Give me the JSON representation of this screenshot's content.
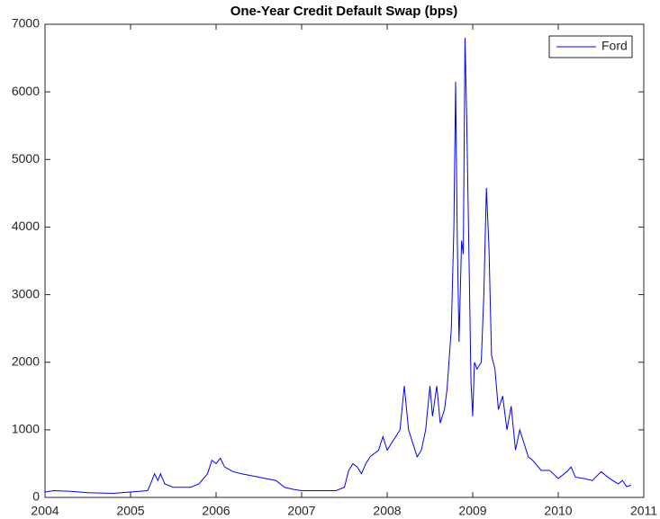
{
  "chart_data": {
    "type": "line",
    "title": "One-Year Credit Default Swap (bps)",
    "x": [
      2004.0,
      2004.1,
      2004.3,
      2004.5,
      2004.8,
      2005.0,
      2005.2,
      2005.25,
      2005.28,
      2005.32,
      2005.35,
      2005.4,
      2005.5,
      2005.7,
      2005.8,
      2005.9,
      2005.95,
      2006.0,
      2006.05,
      2006.1,
      2006.2,
      2006.3,
      2006.5,
      2006.7,
      2006.8,
      2006.9,
      2007.0,
      2007.2,
      2007.4,
      2007.5,
      2007.55,
      2007.6,
      2007.65,
      2007.7,
      2007.75,
      2007.8,
      2007.9,
      2007.95,
      2008.0,
      2008.1,
      2008.15,
      2008.2,
      2008.25,
      2008.3,
      2008.35,
      2008.4,
      2008.45,
      2008.5,
      2008.53,
      2008.58,
      2008.62,
      2008.67,
      2008.7,
      2008.75,
      2008.78,
      2008.8,
      2008.82,
      2008.84,
      2008.87,
      2008.89,
      2008.91,
      2008.93,
      2008.96,
      2008.98,
      2009.0,
      2009.02,
      2009.05,
      2009.1,
      2009.13,
      2009.16,
      2009.19,
      2009.22,
      2009.26,
      2009.3,
      2009.35,
      2009.4,
      2009.45,
      2009.5,
      2009.55,
      2009.6,
      2009.65,
      2009.7,
      2009.8,
      2009.9,
      2010.0,
      2010.1,
      2010.15,
      2010.2,
      2010.3,
      2010.4,
      2010.5,
      2010.6,
      2010.7,
      2010.75,
      2010.8,
      2010.85
    ],
    "series": [
      {
        "name": "Ford",
        "color": "#0000ff",
        "values": [
          80,
          100,
          90,
          70,
          60,
          80,
          100,
          250,
          350,
          250,
          350,
          200,
          150,
          150,
          200,
          350,
          550,
          500,
          580,
          450,
          380,
          350,
          300,
          250,
          150,
          120,
          100,
          100,
          100,
          150,
          400,
          500,
          450,
          350,
          500,
          600,
          700,
          900,
          700,
          900,
          1000,
          1650,
          1000,
          800,
          600,
          700,
          1000,
          1650,
          1200,
          1650,
          1100,
          1300,
          1600,
          2500,
          4000,
          6150,
          3800,
          2300,
          3800,
          3600,
          6800,
          5600,
          3300,
          1700,
          1200,
          2000,
          1900,
          2000,
          3000,
          4580,
          3700,
          2100,
          1900,
          1300,
          1500,
          1000,
          1350,
          700,
          1000,
          800,
          600,
          550,
          400,
          400,
          280,
          380,
          450,
          300,
          280,
          250,
          380,
          280,
          200,
          250,
          160,
          180
        ]
      }
    ],
    "xlim": [
      2004,
      2011
    ],
    "xticks": [
      2004,
      2005,
      2006,
      2007,
      2008,
      2009,
      2010,
      2011
    ],
    "ylim": [
      0,
      7000
    ],
    "yticks": [
      0,
      1000,
      2000,
      3000,
      4000,
      5000,
      6000,
      7000
    ],
    "legend": "upper right"
  }
}
